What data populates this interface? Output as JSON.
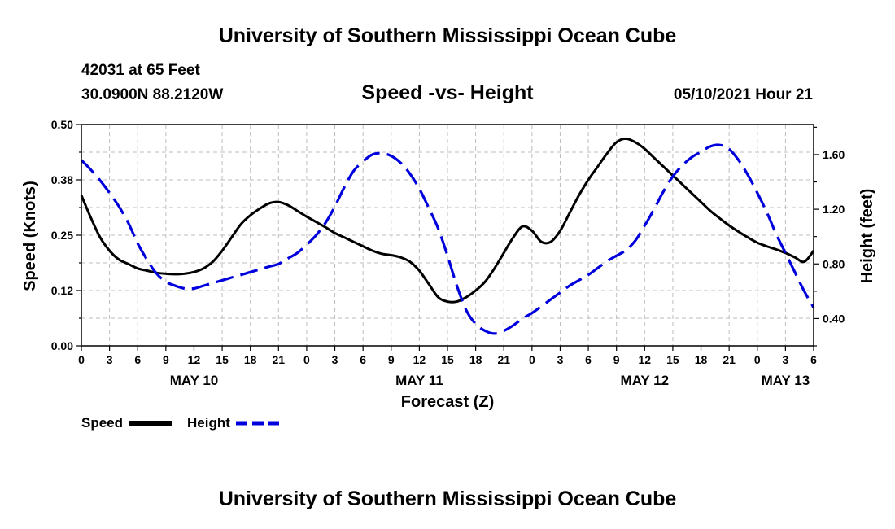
{
  "header": {
    "title": "University of Southern Mississippi Ocean Cube",
    "station": "42031 at 65 Feet",
    "coords": "30.0900N  88.2120W",
    "datetime": "05/10/2021 Hour 21"
  },
  "footer": {
    "title": "University of Southern Mississippi Ocean Cube"
  },
  "chart_data": {
    "type": "line",
    "title": "Speed -vs- Height",
    "xlabel": "Forecast (Z)",
    "ylabel_left": "Speed (Knots)",
    "ylabel_right": "Height (feet)",
    "x_unit": "forecast hours from May 10 00Z",
    "xlim": [
      0,
      78
    ],
    "ylim_left": [
      0,
      0.5
    ],
    "ylim_right": [
      0.2,
      1.82
    ],
    "left_ticks": [
      {
        "value": 0.0,
        "label": "0.00"
      },
      {
        "value": 0.125,
        "label": "0.12"
      },
      {
        "value": 0.25,
        "label": "0.25"
      },
      {
        "value": 0.375,
        "label": "0.38"
      },
      {
        "value": 0.5,
        "label": "0.50"
      }
    ],
    "right_ticks": [
      {
        "value": 0.4,
        "label": "0.40"
      },
      {
        "value": 0.8,
        "label": "0.80"
      },
      {
        "value": 1.2,
        "label": "1.20"
      },
      {
        "value": 1.6,
        "label": "1.60"
      }
    ],
    "x_tick_labels": [
      "0",
      "3",
      "6",
      "9",
      "12",
      "15",
      "18",
      "21",
      "0",
      "3",
      "6",
      "9",
      "12",
      "15",
      "18",
      "21",
      "0",
      "3",
      "6",
      "9",
      "12",
      "15",
      "18",
      "21",
      "0",
      "3",
      "6"
    ],
    "date_labels": [
      {
        "label": "MAY 10",
        "x": 12
      },
      {
        "label": "MAY 11",
        "x": 36
      },
      {
        "label": "MAY 12",
        "x": 60
      },
      {
        "label": "MAY 13",
        "x": 75
      }
    ],
    "grid": true,
    "legend": [
      {
        "name": "Speed",
        "color": "#000000",
        "style": "solid"
      },
      {
        "name": "Height",
        "color": "#0000dd",
        "style": "dashed"
      }
    ],
    "series": [
      {
        "name": "Speed",
        "axis": "left",
        "color": "#000000",
        "x": [
          0,
          1,
          2,
          3,
          4,
          5,
          6,
          7,
          8,
          9,
          10,
          11,
          12,
          13,
          14,
          15,
          16,
          17,
          18,
          19,
          20,
          21,
          22,
          23,
          24,
          25,
          26,
          27,
          28,
          29,
          30,
          31,
          32,
          33,
          34,
          35,
          36,
          37,
          38,
          39,
          40,
          41,
          42,
          43,
          44,
          45,
          46,
          47,
          48,
          49,
          50,
          51,
          52,
          53,
          54,
          55,
          56,
          57,
          58,
          59,
          60,
          61,
          62,
          63,
          64,
          65,
          66,
          67,
          68,
          69,
          70,
          71,
          72,
          73,
          74,
          75,
          76,
          77,
          78
        ],
        "values": [
          0.34,
          0.29,
          0.245,
          0.215,
          0.195,
          0.185,
          0.175,
          0.17,
          0.165,
          0.163,
          0.162,
          0.163,
          0.167,
          0.175,
          0.19,
          0.215,
          0.245,
          0.275,
          0.295,
          0.31,
          0.322,
          0.325,
          0.318,
          0.305,
          0.292,
          0.28,
          0.268,
          0.255,
          0.245,
          0.235,
          0.225,
          0.215,
          0.208,
          0.205,
          0.2,
          0.19,
          0.17,
          0.14,
          0.11,
          0.1,
          0.1,
          0.11,
          0.125,
          0.145,
          0.175,
          0.21,
          0.245,
          0.27,
          0.26,
          0.235,
          0.235,
          0.26,
          0.3,
          0.34,
          0.375,
          0.405,
          0.435,
          0.46,
          0.468,
          0.46,
          0.445,
          0.425,
          0.405,
          0.385,
          0.365,
          0.345,
          0.325,
          0.305,
          0.288,
          0.272,
          0.258,
          0.245,
          0.233,
          0.225,
          0.218,
          0.21,
          0.2,
          0.19,
          0.215
        ]
      },
      {
        "name": "Height",
        "axis": "right",
        "color": "#0000dd",
        "x": [
          0,
          1,
          2,
          3,
          4,
          5,
          6,
          7,
          8,
          9,
          10,
          11,
          12,
          13,
          14,
          15,
          16,
          17,
          18,
          19,
          20,
          21,
          22,
          23,
          24,
          25,
          26,
          27,
          28,
          29,
          30,
          31,
          32,
          33,
          34,
          35,
          36,
          37,
          38,
          39,
          40,
          41,
          42,
          43,
          44,
          45,
          46,
          47,
          48,
          49,
          50,
          51,
          52,
          53,
          54,
          55,
          56,
          57,
          58,
          59,
          60,
          61,
          62,
          63,
          64,
          65,
          66,
          67,
          68,
          69,
          70,
          71,
          72,
          73,
          74,
          75,
          76,
          77,
          78
        ],
        "values": [
          1.56,
          1.49,
          1.41,
          1.32,
          1.22,
          1.1,
          0.95,
          0.83,
          0.73,
          0.67,
          0.64,
          0.62,
          0.62,
          0.64,
          0.66,
          0.68,
          0.7,
          0.72,
          0.74,
          0.76,
          0.78,
          0.8,
          0.84,
          0.88,
          0.94,
          1.01,
          1.1,
          1.22,
          1.36,
          1.48,
          1.55,
          1.6,
          1.61,
          1.59,
          1.54,
          1.46,
          1.35,
          1.21,
          1.06,
          0.86,
          0.64,
          0.46,
          0.36,
          0.31,
          0.29,
          0.31,
          0.35,
          0.4,
          0.44,
          0.49,
          0.54,
          0.59,
          0.64,
          0.68,
          0.72,
          0.77,
          0.82,
          0.86,
          0.9,
          0.97,
          1.08,
          1.2,
          1.33,
          1.44,
          1.52,
          1.58,
          1.62,
          1.66,
          1.67,
          1.64,
          1.56,
          1.45,
          1.32,
          1.18,
          1.02,
          0.88,
          0.74,
          0.6,
          0.48
        ]
      }
    ]
  }
}
